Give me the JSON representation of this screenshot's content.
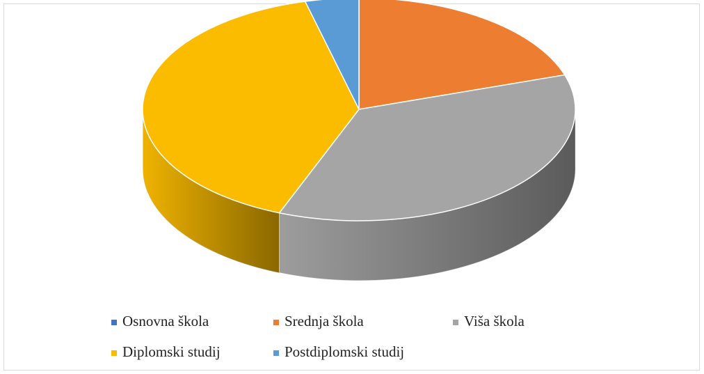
{
  "chart_data": {
    "type": "pie",
    "categories": [
      "Osnovna škola",
      "Srednja škola",
      "Viša škola",
      "Diplomski studij",
      "Postdiplomski studij"
    ],
    "values": [
      0,
      20,
      36,
      40,
      4
    ],
    "colors": [
      "#4472c4",
      "#ed7d31",
      "#a5a5a5",
      "#fbbc00",
      "#5b9bd5"
    ],
    "legend": "bottom"
  }
}
